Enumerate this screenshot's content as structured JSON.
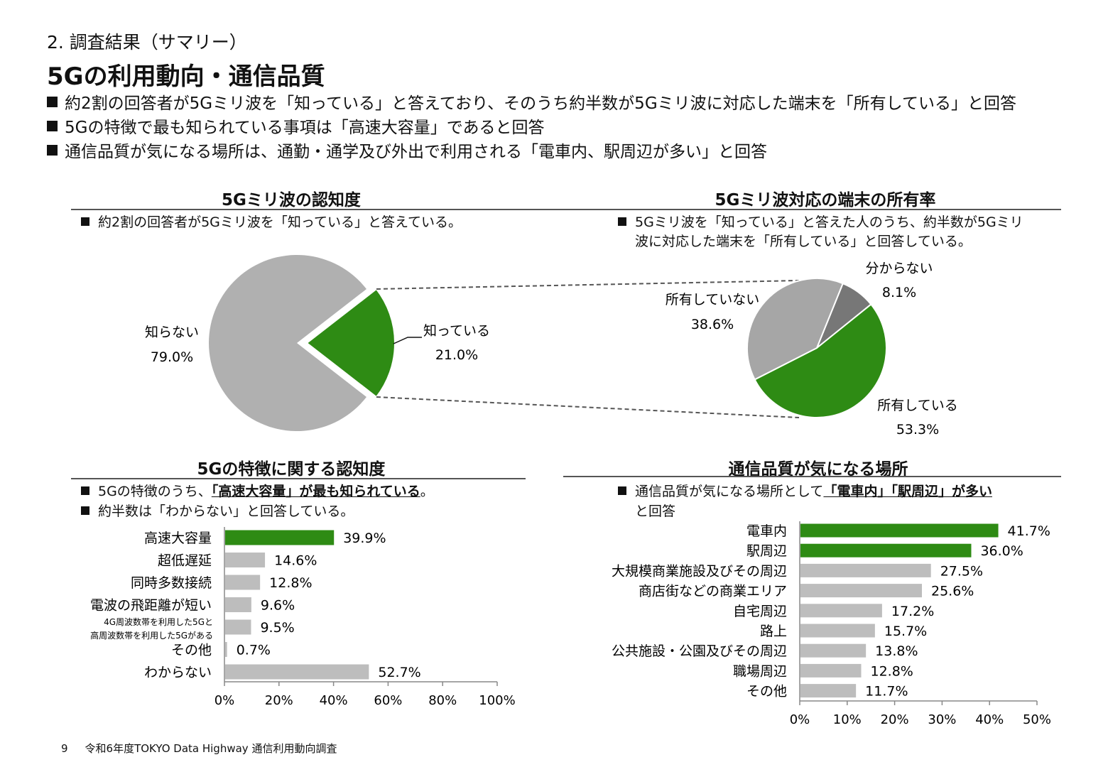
{
  "header": {
    "section": "2. 調査結果（サマリー）",
    "title": "5Gの利用動向・通信品質",
    "bullets": [
      "約2割の回答者が5Gミリ波を「知っている」と答えており、そのうち約半数が5Gミリ波に対応した端末を「所有している」と回答",
      "5Gの特徴で最も知られている事項は「高速大容量」であると回答",
      "通信品質が気になる場所は、通勤・通学及び外出で利用される「電車内、駅周辺が多い」と回答"
    ]
  },
  "panels": {
    "awareness": {
      "title": "5Gミリ波の認知度",
      "note": "約2割の回答者が5Gミリ波を「知っている」と答えている。"
    },
    "ownership": {
      "title": "5Gミリ波対応の端末の所有率",
      "note_line1": "5Gミリ波を「知っている」と答えた人のうち、約半数が5Gミリ",
      "note_line2": "波に対応した端末を「所有している」と回答している。"
    },
    "features": {
      "title": "5Gの特徴に関する認知度",
      "note1_pre": "5Gの特徴のうち、",
      "note1_em": "「高速大容量」が最も知られている",
      "note1_post": "。",
      "note2": "約半数は「わからない」と回答している。"
    },
    "locations": {
      "title": "通信品質が気になる場所",
      "note1_pre": "通信品質が気になる場所として",
      "note1_em": "「電車内」「駅周辺」が多い",
      "note2": "と回答"
    }
  },
  "chart_data": [
    {
      "type": "pie",
      "labels": [
        "知っている",
        "知らない"
      ],
      "values": [
        21.0,
        79.0
      ],
      "value_labels": [
        "21.0%",
        "79.0%"
      ],
      "colors": [
        "#2e8b14",
        "#b0b0b0"
      ]
    },
    {
      "type": "pie",
      "labels": [
        "所有している",
        "所有していない",
        "分からない"
      ],
      "values": [
        53.3,
        38.6,
        8.1
      ],
      "value_labels": [
        "53.3%",
        "38.6%",
        "8.1%"
      ],
      "colors": [
        "#2e8b14",
        "#a6a6a6",
        "#777777"
      ]
    },
    {
      "type": "bar",
      "orientation": "horizontal",
      "categories": [
        "高速大容量",
        "超低遅延",
        "同時多数接続",
        "電波の飛距離が短い",
        "4G周波数帯を利用した5Gと\n高周波数帯を利用した5Gがある",
        "その他",
        "わからない"
      ],
      "values": [
        39.9,
        14.6,
        12.8,
        9.6,
        9.5,
        0.7,
        52.7
      ],
      "value_labels": [
        "39.9%",
        "14.6%",
        "12.8%",
        "9.6%",
        "9.5%",
        "0.7%",
        "52.7%"
      ],
      "highlight": [
        true,
        false,
        false,
        false,
        false,
        false,
        false
      ],
      "xlim": [
        0,
        100
      ],
      "xticks": [
        "0%",
        "20%",
        "40%",
        "60%",
        "80%",
        "100%"
      ],
      "colors": {
        "highlight": "#2e8b14",
        "default": "#bdbdbd"
      }
    },
    {
      "type": "bar",
      "orientation": "horizontal",
      "categories": [
        "電車内",
        "駅周辺",
        "大規模商業施設及びその周辺",
        "商店街などの商業エリア",
        "自宅周辺",
        "路上",
        "公共施設・公園及びその周辺",
        "職場周辺",
        "その他"
      ],
      "values": [
        41.7,
        36.0,
        27.5,
        25.6,
        17.2,
        15.7,
        13.8,
        12.8,
        11.7
      ],
      "value_labels": [
        "41.7%",
        "36.0%",
        "27.5%",
        "25.6%",
        "17.2%",
        "15.7%",
        "13.8%",
        "12.8%",
        "11.7%"
      ],
      "highlight": [
        true,
        true,
        false,
        false,
        false,
        false,
        false,
        false,
        false
      ],
      "xlim": [
        0,
        50
      ],
      "xticks": [
        "0%",
        "10%",
        "20%",
        "30%",
        "40%",
        "50%"
      ],
      "colors": {
        "highlight": "#2e8b14",
        "default": "#bdbdbd"
      }
    }
  ],
  "footer": {
    "page": "9",
    "text": "令和6年度TOKYO Data Highway 通信利用動向調査"
  }
}
